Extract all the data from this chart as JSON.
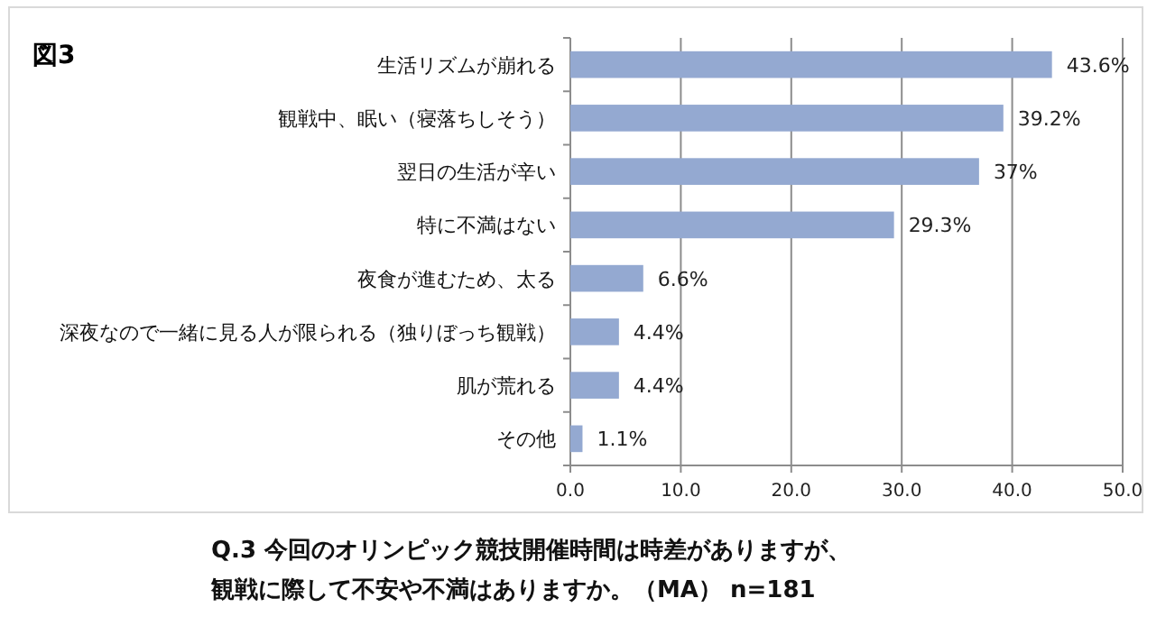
{
  "chart_data": {
    "type": "bar",
    "orientation": "horizontal",
    "title": "図3",
    "categories": [
      "生活リズムが崩れる",
      "観戦中、眠い（寝落ちしそう）",
      "翌日の生活が辛い",
      "特に不満はない",
      "夜食が進むため、太る",
      "深夜なので一緒に見る人が限られる（独りぼっち観戦）",
      "肌が荒れる",
      "その他"
    ],
    "values": [
      43.6,
      39.2,
      37,
      29.3,
      6.6,
      4.4,
      4.4,
      1.1
    ],
    "value_labels": [
      "43.6%",
      "39.2%",
      "37%",
      "29.3%",
      "6.6%",
      "4.4%",
      "4.4%",
      "1.1%"
    ],
    "color": "#94a9d1",
    "xlim": [
      0,
      50
    ],
    "xticks": [
      {
        "value": 0,
        "label": "0.0"
      },
      {
        "value": 10,
        "label": "10.0"
      },
      {
        "value": 20,
        "label": "20.0"
      },
      {
        "value": 30,
        "label": "30.0"
      },
      {
        "value": 40,
        "label": "40.0"
      },
      {
        "value": 50,
        "label": "50.0"
      }
    ],
    "grid": "x",
    "annotations": [
      "Q.3 今回のオリンピック競技開催時間は時差がありますが、",
      "観戦に際して不安や不満はありますか。（MA） n=181"
    ]
  }
}
